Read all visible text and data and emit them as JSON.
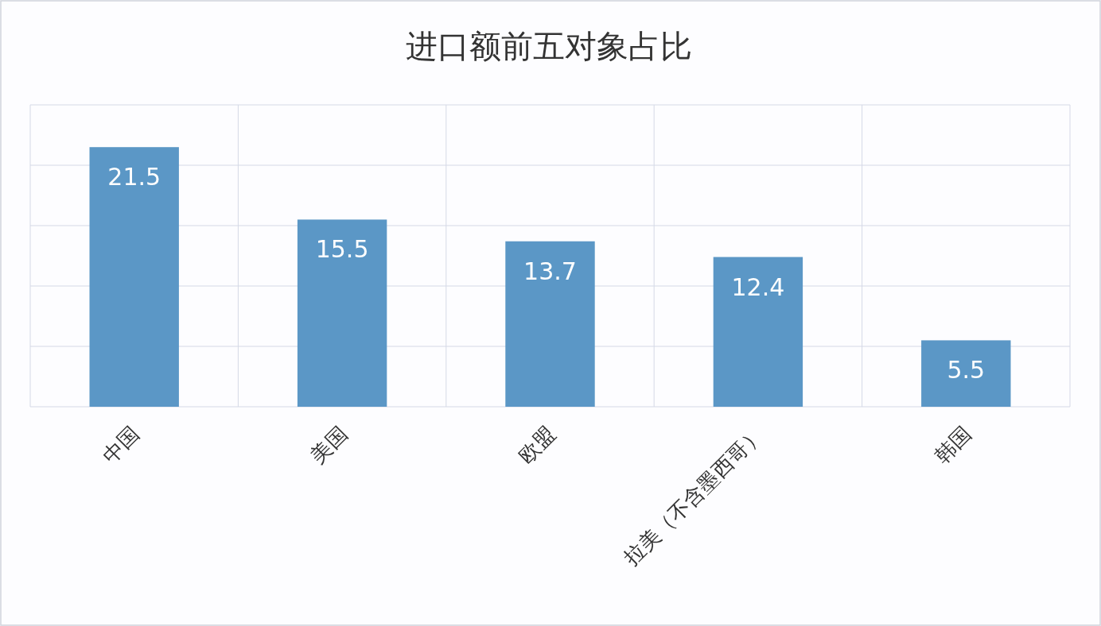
{
  "chart_data": {
    "type": "bar",
    "title": "进口额前五对象占比",
    "categories": [
      "中国",
      "美国",
      "欧盟",
      "拉美（不含墨西哥）",
      "韩国"
    ],
    "values": [
      21.5,
      15.5,
      13.7,
      12.4,
      5.5
    ],
    "color": "#5b97c6",
    "ylim": [
      0,
      25
    ],
    "yticks": [
      {
        "value": 0,
        "label": null
      },
      {
        "value": 5,
        "label": null
      },
      {
        "value": 10,
        "label": null
      },
      {
        "value": 15,
        "label": null
      },
      {
        "value": 20,
        "label": null
      },
      {
        "value": 25,
        "label": null
      }
    ],
    "grid": true,
    "tick_labels": "x",
    "data_labels": true
  }
}
